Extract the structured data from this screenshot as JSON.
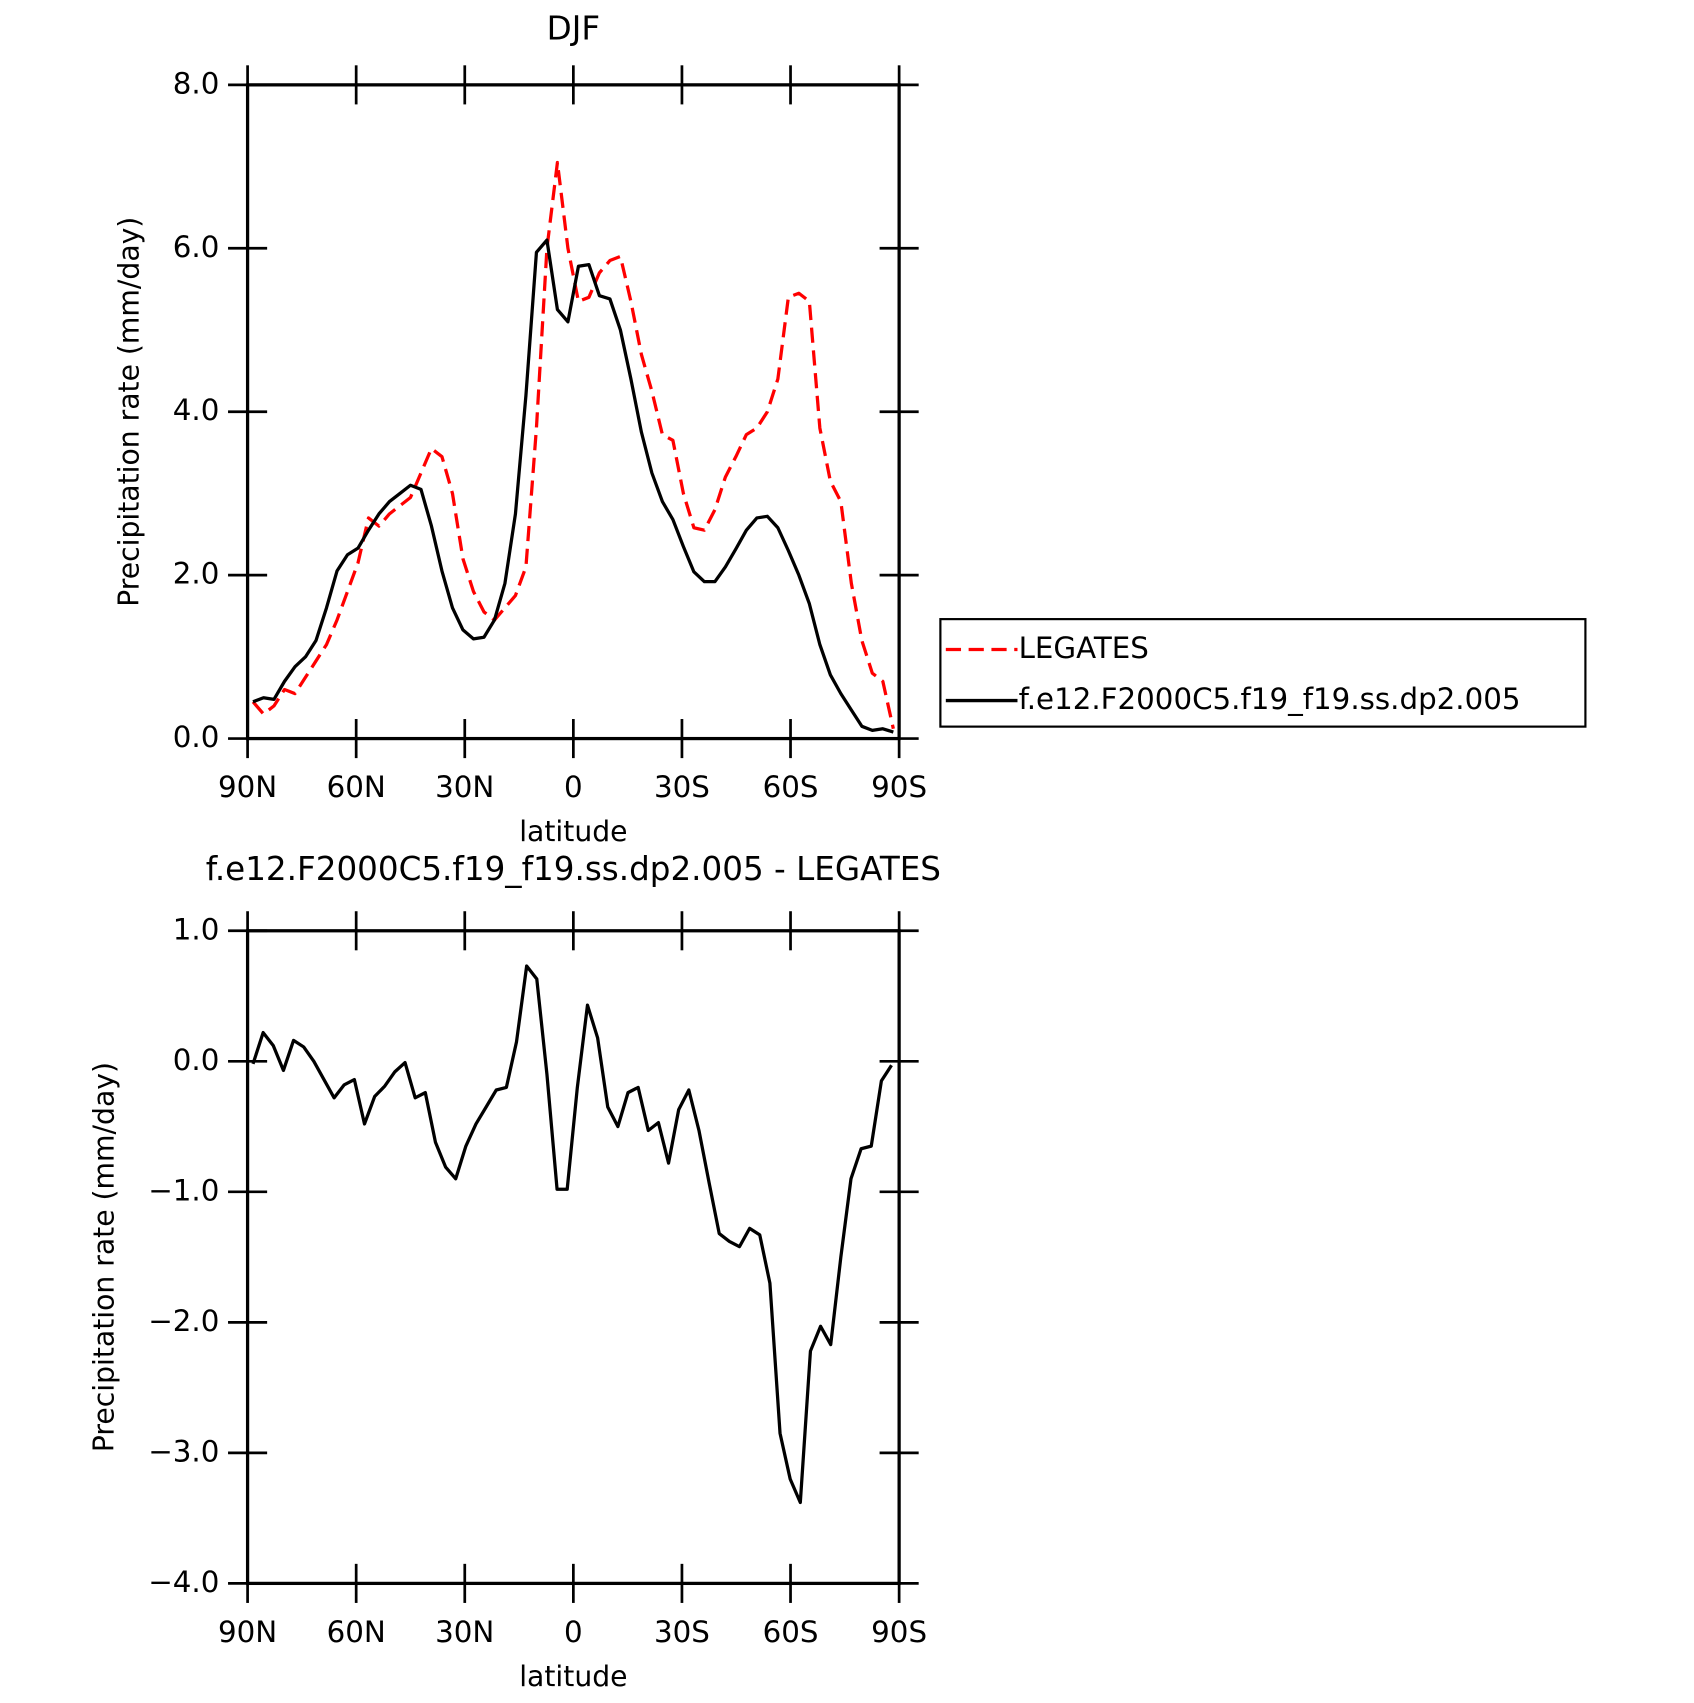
{
  "chart_data": [
    {
      "type": "line",
      "title": "DJF",
      "x_label": "latitude",
      "y_label": "Precipitation rate (mm/day)",
      "x": [
        88.5,
        85.6,
        82.7,
        79.8,
        76.9,
        74,
        71.1,
        68.2,
        65.3,
        62.4,
        59.5,
        56.6,
        53.7,
        50.8,
        47.9,
        45,
        42.1,
        39.2,
        36.3,
        33.4,
        30.5,
        27.6,
        24.7,
        21.8,
        18.9,
        16,
        13.1,
        10.2,
        7.3,
        4.4,
        1.5,
        -1.4,
        -4.3,
        -7.2,
        -10.1,
        -13,
        -15.9,
        -18.8,
        -21.7,
        -24.6,
        -27.5,
        -30.4,
        -33.3,
        -36.2,
        -39.1,
        -42,
        -44.9,
        -47.8,
        -50.7,
        -53.6,
        -56.5,
        -59.4,
        -62.3,
        -65.2,
        -68.1,
        -71,
        -73.9,
        -76.8,
        -79.7,
        -82.6,
        -85.5,
        -88.4
      ],
      "series": [
        {
          "name": "LEGATES",
          "color": "#ff0000",
          "style": "dashed",
          "values": [
            0.45,
            0.3,
            0.4,
            0.6,
            0.55,
            0.75,
            0.95,
            1.15,
            1.45,
            1.8,
            2.15,
            2.7,
            2.6,
            2.75,
            2.85,
            2.95,
            3.25,
            3.55,
            3.45,
            3.0,
            2.2,
            1.8,
            1.55,
            1.45,
            1.6,
            1.75,
            2.1,
            3.8,
            6.0,
            7.05,
            6.0,
            5.35,
            5.4,
            5.7,
            5.85,
            5.9,
            5.35,
            4.7,
            4.25,
            3.72,
            3.65,
            3.0,
            2.58,
            2.55,
            2.8,
            3.2,
            3.45,
            3.72,
            3.8,
            4.0,
            4.4,
            5.4,
            5.45,
            5.35,
            3.8,
            3.15,
            2.9,
            1.9,
            1.2,
            0.8,
            0.7,
            0.12
          ]
        },
        {
          "name": "f.e12.F2000C5.f19_f19.ss.dp2.005",
          "color": "#000000",
          "style": "solid",
          "values": [
            0.45,
            0.5,
            0.48,
            0.7,
            0.88,
            1.0,
            1.2,
            1.6,
            2.05,
            2.25,
            2.33,
            2.55,
            2.75,
            2.9,
            3.0,
            3.1,
            3.05,
            2.6,
            2.05,
            1.6,
            1.33,
            1.22,
            1.24,
            1.45,
            1.9,
            2.75,
            4.2,
            5.95,
            6.1,
            5.25,
            5.1,
            5.78,
            5.8,
            5.42,
            5.38,
            5.0,
            4.4,
            3.75,
            3.25,
            2.9,
            2.68,
            2.35,
            2.04,
            1.92,
            1.92,
            2.1,
            2.32,
            2.55,
            2.7,
            2.72,
            2.58,
            2.3,
            2.0,
            1.65,
            1.15,
            0.78,
            0.55,
            0.35,
            0.15,
            0.1,
            0.12,
            0.08
          ]
        }
      ],
      "xlim": [
        90,
        -90
      ],
      "xticks": [
        {
          "value": 90,
          "label": "90N"
        },
        {
          "value": 60,
          "label": "60N"
        },
        {
          "value": 30,
          "label": "30N"
        },
        0,
        {
          "value": -30,
          "label": "30S"
        },
        {
          "value": -60,
          "label": "60S"
        },
        {
          "value": -90,
          "label": "90S"
        }
      ],
      "ylim": [
        0,
        8
      ],
      "yticks": [
        {
          "value": 0,
          "label": "0.0"
        },
        {
          "value": 2,
          "label": "2.0"
        },
        {
          "value": 4,
          "label": "4.0"
        },
        {
          "value": 6,
          "label": "6.0"
        },
        {
          "value": 8,
          "label": "8.0"
        }
      ],
      "legend": "outside-right"
    },
    {
      "type": "line",
      "title": "f.e12.F2000C5.f19_f19.ss.dp2.005 - LEGATES",
      "x_label": "latitude",
      "y_label": "Precipitation rate (mm/day)",
      "x": [
        88.5,
        85.7,
        82.9,
        80.1,
        77.3,
        74.5,
        71.7,
        68.9,
        66.1,
        63.3,
        60.5,
        57.7,
        54.9,
        52.1,
        49.3,
        46.5,
        43.7,
        40.9,
        38.1,
        35.3,
        32.5,
        29.7,
        26.9,
        24.1,
        21.3,
        18.5,
        15.7,
        12.9,
        10.1,
        7.3,
        4.5,
        1.7,
        -1.1,
        -3.9,
        -6.7,
        -9.5,
        -12.3,
        -15.1,
        -17.9,
        -20.7,
        -23.5,
        -26.3,
        -29.1,
        -31.9,
        -34.7,
        -37.5,
        -40.3,
        -43.1,
        -45.9,
        -48.7,
        -51.5,
        -54.3,
        -57.1,
        -59.9,
        -62.7,
        -65.5,
        -68.3,
        -71.1,
        -73.9,
        -76.7,
        -79.5,
        -82.3,
        -85.1,
        -87.9
      ],
      "series": [
        {
          "color": "#000000",
          "style": "solid",
          "values": [
            -0.02,
            0.22,
            0.12,
            -0.07,
            0.16,
            0.11,
            0.0,
            -0.14,
            -0.28,
            -0.18,
            -0.14,
            -0.48,
            -0.27,
            -0.19,
            -0.08,
            -0.01,
            -0.28,
            -0.24,
            -0.62,
            -0.81,
            -0.9,
            -0.65,
            -0.48,
            -0.35,
            -0.22,
            -0.2,
            0.15,
            0.73,
            0.63,
            -0.1,
            -0.98,
            -0.98,
            -0.2,
            0.43,
            0.18,
            -0.35,
            -0.5,
            -0.24,
            -0.2,
            -0.53,
            -0.47,
            -0.78,
            -0.37,
            -0.22,
            -0.53,
            -0.93,
            -1.32,
            -1.38,
            -1.42,
            -1.28,
            -1.33,
            -1.7,
            -2.85,
            -3.2,
            -3.38,
            -2.22,
            -2.03,
            -2.17,
            -1.5,
            -0.9,
            -0.67,
            -0.65,
            -0.15,
            -0.03
          ]
        }
      ],
      "xlim": [
        90,
        -90
      ],
      "xticks": [
        {
          "value": 90,
          "label": "90N"
        },
        {
          "value": 60,
          "label": "60N"
        },
        {
          "value": 30,
          "label": "30N"
        },
        0,
        {
          "value": -30,
          "label": "30S"
        },
        {
          "value": -60,
          "label": "60S"
        },
        {
          "value": -90,
          "label": "90S"
        }
      ],
      "ylim": [
        -4,
        1
      ],
      "yticks": [
        {
          "value": -4,
          "label": "−4.0"
        },
        {
          "value": -3,
          "label": "−3.0"
        },
        {
          "value": -2,
          "label": "−2.0"
        },
        {
          "value": -1,
          "label": "−1.0"
        },
        {
          "value": 0,
          "label": "0.0"
        },
        {
          "value": 1,
          "label": "1.0"
        }
      ]
    }
  ]
}
